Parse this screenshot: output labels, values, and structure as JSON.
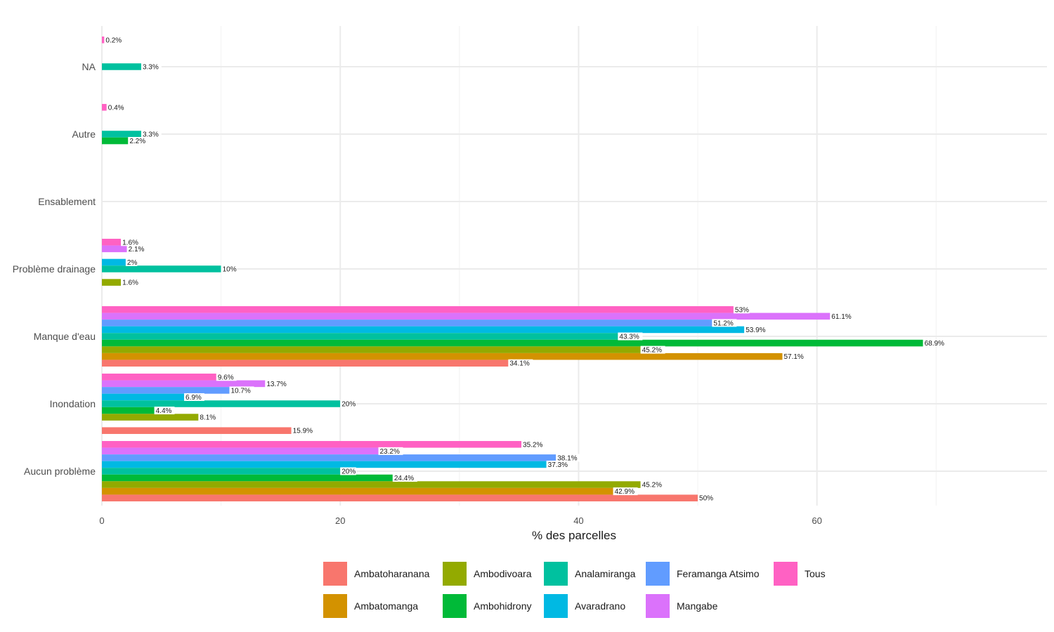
{
  "chart_data": {
    "type": "bar",
    "orientation": "horizontal",
    "title": "",
    "xlabel": "% des parcelles",
    "ylabel": "",
    "xlim": [
      0,
      79.3
    ],
    "xticks": [
      0,
      20,
      40,
      60
    ],
    "xtick_labels": [
      "0",
      "20",
      "40",
      "60"
    ],
    "grid": true,
    "legend_position": "bottom",
    "categories": [
      "NA",
      "Autre",
      "Ensablement",
      "Problème drainage",
      "Manque d'eau",
      "Inondation",
      "Aucun problème"
    ],
    "series": [
      {
        "name": "Tous",
        "color": "#FF61C3",
        "values": [
          0.2,
          0.4,
          null,
          1.6,
          53,
          9.6,
          35.2
        ],
        "labels": [
          "0.2%",
          "0.4%",
          null,
          "1.6%",
          "53%",
          "9.6%",
          "35.2%"
        ]
      },
      {
        "name": "Mangabe",
        "color": "#DB72FB",
        "values": [
          null,
          null,
          null,
          2.1,
          61.1,
          13.7,
          23.2
        ],
        "labels": [
          null,
          null,
          null,
          "2.1%",
          "61.1%",
          "13.7%",
          "23.2%"
        ]
      },
      {
        "name": "Feramanga Atsimo",
        "color": "#619CFF",
        "values": [
          null,
          null,
          null,
          null,
          51.2,
          10.7,
          38.1
        ],
        "labels": [
          null,
          null,
          null,
          null,
          "51.2%",
          "10.7%",
          "38.1%"
        ]
      },
      {
        "name": "Avaradrano",
        "color": "#00B9E3",
        "values": [
          null,
          null,
          null,
          2,
          53.9,
          6.9,
          37.3
        ],
        "labels": [
          null,
          null,
          null,
          "2%",
          "53.9%",
          "6.9%",
          "37.3%"
        ]
      },
      {
        "name": "Analamiranga",
        "color": "#00C19F",
        "values": [
          3.3,
          3.3,
          null,
          10,
          43.3,
          20,
          20
        ],
        "labels": [
          "3.3%",
          "3.3%",
          null,
          "10%",
          "43.3%",
          "20%",
          "20%"
        ]
      },
      {
        "name": "Ambohidrony",
        "color": "#00BA38",
        "values": [
          null,
          2.2,
          null,
          null,
          68.9,
          4.4,
          24.4
        ],
        "labels": [
          null,
          "2.2%",
          null,
          null,
          "68.9%",
          "4.4%",
          "24.4%"
        ]
      },
      {
        "name": "Ambodivoara",
        "color": "#93AA00",
        "values": [
          null,
          null,
          null,
          1.6,
          45.2,
          8.1,
          45.2
        ],
        "labels": [
          null,
          null,
          null,
          "1.6%",
          "45.2%",
          "8.1%",
          "45.2%"
        ]
      },
      {
        "name": "Ambatomanga",
        "color": "#D39200",
        "values": [
          null,
          null,
          null,
          null,
          57.1,
          null,
          42.9
        ],
        "labels": [
          null,
          null,
          null,
          null,
          "57.1%",
          null,
          "42.9%"
        ]
      },
      {
        "name": "Ambatoharanana",
        "color": "#F8766D",
        "values": [
          null,
          null,
          null,
          null,
          34.1,
          15.9,
          50
        ],
        "labels": [
          null,
          null,
          null,
          null,
          "34.1%",
          "15.9%",
          "50%"
        ]
      }
    ],
    "legend": [
      {
        "name": "Ambatoharanana",
        "color": "#F8766D"
      },
      {
        "name": "Ambatomanga",
        "color": "#D39200"
      },
      {
        "name": "Ambodivoara",
        "color": "#93AA00"
      },
      {
        "name": "Ambohidrony",
        "color": "#00BA38"
      },
      {
        "name": "Analamiranga",
        "color": "#00C19F"
      },
      {
        "name": "Avaradrano",
        "color": "#00B9E3"
      },
      {
        "name": "Feramanga Atsimo",
        "color": "#619CFF"
      },
      {
        "name": "Mangabe",
        "color": "#DB72FB"
      },
      {
        "name": "Tous",
        "color": "#FF61C3"
      }
    ]
  }
}
